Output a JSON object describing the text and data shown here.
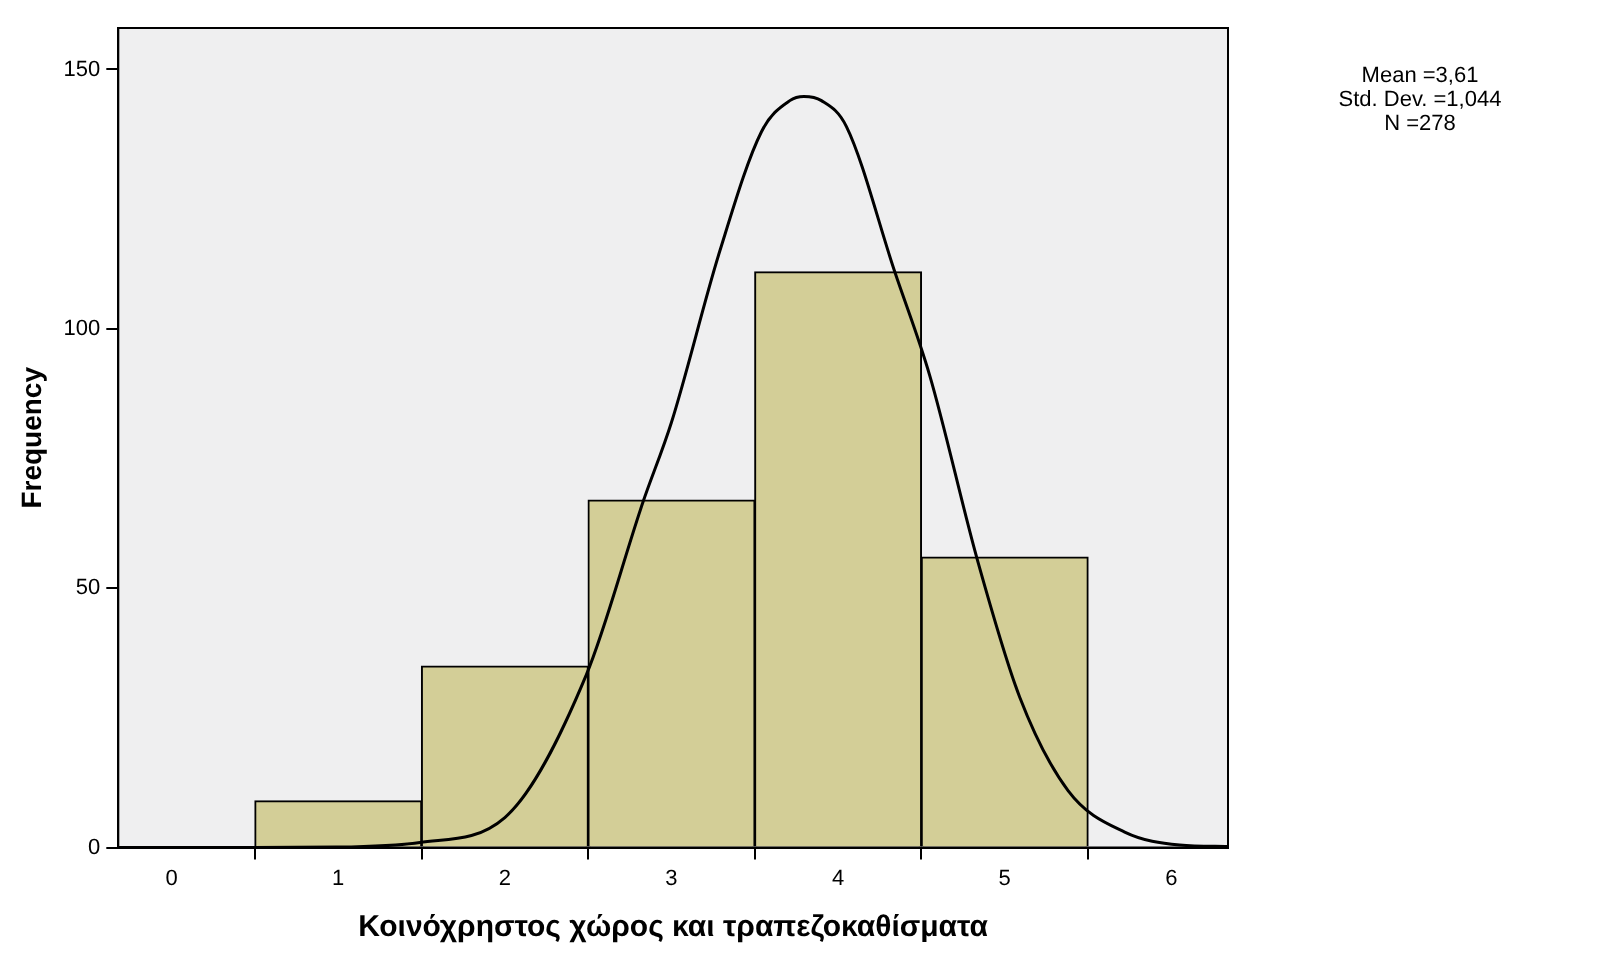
{
  "chart_data": {
    "type": "histogram",
    "xlabel": "Κοινόχρηστος χώρος και τραπεζοκαθίσματα",
    "ylabel": "Frequency",
    "bins": [
      0.5,
      1.5,
      2.5,
      3.5,
      4.5,
      5.5
    ],
    "values": [
      9,
      35,
      67,
      111,
      56
    ],
    "color": "#d3ce97",
    "series": [
      {
        "type": "line",
        "color": "#000000",
        "x": [
          -0.32,
          0.36,
          0.99,
          1.49,
          2.0,
          2.49,
          2.83,
          3.0,
          3.29,
          3.54,
          3.71,
          3.795,
          3.9,
          4.05,
          4.34,
          4.55,
          4.84,
          5.09,
          5.38,
          5.72,
          6.05,
          6.34
        ],
        "values": [
          0,
          0,
          0.1,
          1,
          5.8,
          33.4,
          66.7,
          82,
          115,
          138,
          144,
          144.8,
          144,
          139,
          111,
          91,
          55,
          29,
          11,
          3,
          0.5,
          0.2
        ]
      }
    ],
    "xlim": [
      -0.32,
      6.34
    ],
    "ylim": [
      0,
      158
    ],
    "xticks": [
      0,
      1,
      2,
      3,
      4,
      5,
      6
    ],
    "yticks": [
      0,
      50,
      100,
      150
    ],
    "grid": false,
    "legend": false,
    "marker": "none",
    "line_style": "solid",
    "annotations": [
      "Mean =3,61",
      "Std. Dev. =1,044",
      "N =278"
    ]
  }
}
